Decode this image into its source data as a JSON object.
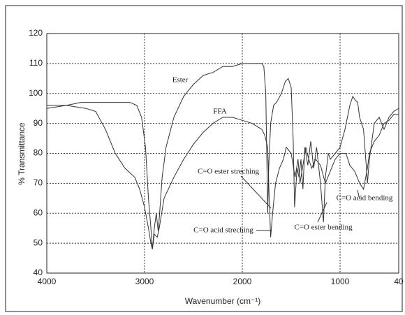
{
  "chart_data": {
    "type": "line",
    "xlabel": "Wavenumber (cm⁻¹)",
    "ylabel": "% Transmittance",
    "xlim": [
      4000,
      400
    ],
    "ylim": [
      40,
      120
    ],
    "xticks": [
      4000,
      3000,
      2000,
      1000,
      {
        "value": 400,
        "label": "40"
      }
    ],
    "yticks": [
      40,
      50,
      60,
      70,
      80,
      90,
      100,
      110,
      120
    ],
    "grid": true,
    "series": [
      {
        "name": "Ester",
        "color": "#333333",
        "x": [
          4000,
          3800,
          3650,
          3500,
          3300,
          3150,
          3080,
          3030,
          2990,
          2960,
          2935,
          2920,
          2900,
          2880,
          2860,
          2850,
          2820,
          2780,
          2700,
          2600,
          2500,
          2400,
          2300,
          2200,
          2100,
          2000,
          1900,
          1800,
          1780,
          1760,
          1750,
          1740,
          1730,
          1710,
          1680,
          1650,
          1600,
          1560,
          1530,
          1500,
          1480,
          1465,
          1440,
          1420,
          1400,
          1380,
          1360,
          1330,
          1300,
          1270,
          1240,
          1200,
          1170,
          1150,
          1120,
          1100,
          1050,
          1000,
          950,
          900,
          870,
          850,
          820,
          800,
          760,
          730,
          720,
          700,
          650,
          600,
          550,
          500,
          450,
          400
        ],
        "values": [
          96,
          96,
          97,
          97,
          97,
          97,
          96,
          92,
          82,
          65,
          55,
          48,
          55,
          60,
          54,
          58,
          72,
          82,
          92,
          99,
          103,
          106,
          107,
          109,
          109,
          110,
          110,
          110,
          109,
          100,
          80,
          60,
          75,
          90,
          96,
          97,
          100,
          104,
          105,
          102,
          85,
          62,
          75,
          72,
          78,
          68,
          82,
          76,
          84,
          75,
          82,
          70,
          57,
          72,
          80,
          78,
          80,
          82,
          88,
          96,
          99,
          98,
          97,
          92,
          88,
          75,
          70,
          78,
          90,
          92,
          88,
          92,
          94,
          95
        ]
      },
      {
        "name": "FFA",
        "color": "#333333",
        "x": [
          4000,
          3800,
          3600,
          3500,
          3400,
          3300,
          3200,
          3100,
          3050,
          3000,
          2960,
          2935,
          2920,
          2900,
          2870,
          2850,
          2800,
          2700,
          2600,
          2500,
          2400,
          2300,
          2200,
          2100,
          2000,
          1900,
          1850,
          1800,
          1770,
          1740,
          1725,
          1710,
          1690,
          1660,
          1620,
          1580,
          1550,
          1500,
          1460,
          1430,
          1410,
          1380,
          1350,
          1320,
          1290,
          1250,
          1200,
          1150,
          1100,
          1050,
          1000,
          940,
          900,
          850,
          800,
          760,
          720,
          700,
          650,
          600,
          550,
          500,
          450,
          400
        ],
        "values": [
          95,
          96,
          95,
          94,
          88,
          80,
          75,
          72,
          68,
          62,
          55,
          50,
          48,
          53,
          52,
          55,
          65,
          72,
          78,
          83,
          87,
          90,
          92,
          92,
          91,
          90,
          89,
          88,
          86,
          82,
          65,
          52,
          60,
          70,
          75,
          78,
          82,
          80,
          72,
          78,
          70,
          76,
          82,
          78,
          75,
          78,
          76,
          70,
          74,
          78,
          80,
          80,
          76,
          74,
          70,
          68,
          75,
          80,
          84,
          86,
          90,
          91,
          93,
          93
        ]
      }
    ],
    "annotations": [
      "C=O ester streching",
      "C=O acid streching",
      "C=O ester bending",
      "C=O acid bending"
    ]
  }
}
